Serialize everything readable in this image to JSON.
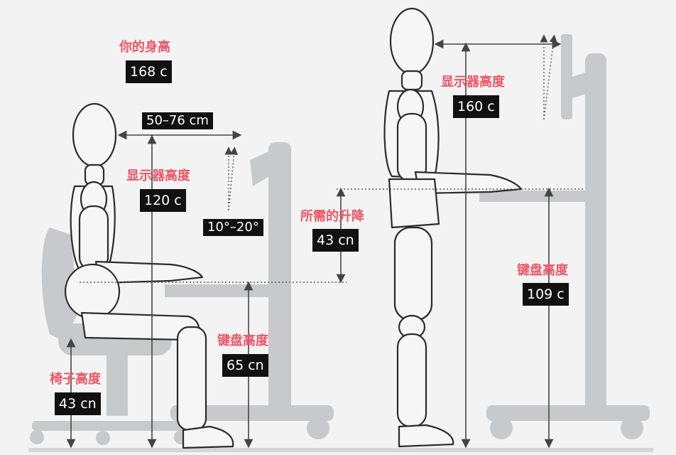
{
  "seated": {
    "body_height": {
      "label": "你的身高",
      "value": "168 c"
    },
    "view_distance": {
      "value": "50–76 cm"
    },
    "monitor_height": {
      "label": "显示器高度",
      "value": "120 c"
    },
    "tilt_angle": {
      "value": "10°–20°"
    },
    "keyboard_height": {
      "label": "键盘高度",
      "value": "65 cn"
    },
    "chair_height": {
      "label": "椅子高度",
      "value": "43 cn"
    }
  },
  "lift": {
    "label": "所需的升降",
    "value": "43 cn"
  },
  "standing": {
    "monitor_height": {
      "label": "显示器高度",
      "value": "160 c"
    },
    "keyboard_height": {
      "label": "键盘高度",
      "value": "109 c"
    }
  },
  "colors": {
    "label": "#ee5566",
    "value_bg": "#111111",
    "furniture": "#c8c9cb",
    "figure_stroke": "#2b2b2b",
    "arrow": "#444444",
    "background": "#f3f3f3"
  }
}
